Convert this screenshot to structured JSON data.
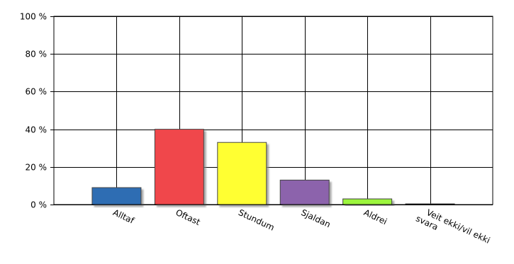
{
  "chart_data": {
    "type": "bar",
    "categories": [
      "Alltaf",
      "Oftast",
      "Stundum",
      "Sjaldan",
      "Aldrei",
      "Veit ekki/vil ekki svara"
    ],
    "category_lines": [
      [
        "Alltaf"
      ],
      [
        "Oftast"
      ],
      [
        "Stundum"
      ],
      [
        "Sjaldan"
      ],
      [
        "Aldrei"
      ],
      [
        "Veit ekki/vil ekki",
        "svara"
      ]
    ],
    "values": [
      9,
      40,
      33,
      13,
      3,
      0.5
    ],
    "colors": [
      "#2f6db3",
      "#f0474b",
      "#ffff33",
      "#8c64ac",
      "#9cf53c",
      "#3a3a3a"
    ],
    "ylim": [
      0,
      100
    ],
    "yticks": [
      0,
      20,
      40,
      60,
      80,
      100
    ],
    "ytick_labels": [
      "0 %",
      "20 %",
      "40 %",
      "60 %",
      "80 %",
      "100 %"
    ],
    "grid": true,
    "title": "",
    "xlabel": "",
    "ylabel": ""
  }
}
